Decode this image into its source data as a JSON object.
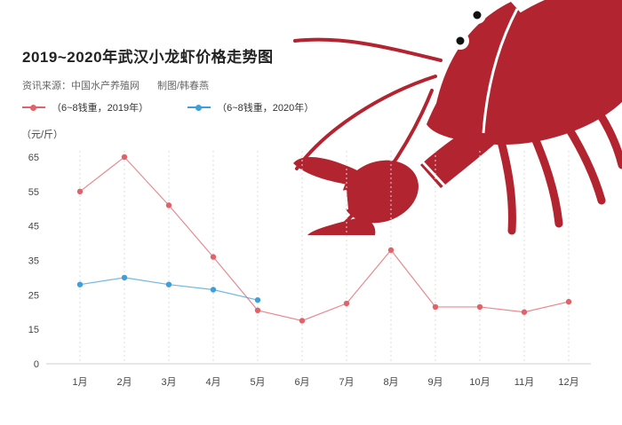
{
  "header": {
    "title": "2019~2020年武汉小龙虾价格走势图",
    "source": "资讯来源：中国水产养殖网",
    "credit": "制图/韩春燕"
  },
  "legend": [
    {
      "label": "（6~8钱重，2019年）",
      "color": "#e0636b"
    },
    {
      "label": "（6~8钱重，2020年）",
      "color": "#3f9fd8"
    }
  ],
  "chart_data": {
    "type": "line",
    "title": "2019~2020年武汉小龙虾价格走势图",
    "ylabel": "（元/斤）",
    "categories": [
      "1月",
      "2月",
      "3月",
      "4月",
      "5月",
      "6月",
      "7月",
      "8月",
      "9月",
      "10月",
      "11月",
      "12月"
    ],
    "y_ticks": [
      0,
      15,
      25,
      35,
      45,
      55,
      65
    ],
    "grid": "vertical-dashed",
    "legend_position": "top-left",
    "series": [
      {
        "name": "（6~8钱重，2019年）",
        "color": "#e0636b",
        "values": [
          55,
          65,
          51,
          36,
          20.5,
          17.5,
          22.5,
          38,
          21.5,
          21.5,
          20,
          23
        ]
      },
      {
        "name": "（6~8钱重，2020年）",
        "color": "#3f9fd8",
        "values": [
          28,
          30,
          28,
          26.5,
          23.5,
          null,
          null,
          null,
          null,
          null,
          null,
          null
        ]
      }
    ]
  },
  "illustration": {
    "name": "crayfish",
    "color": "#b2242f"
  }
}
